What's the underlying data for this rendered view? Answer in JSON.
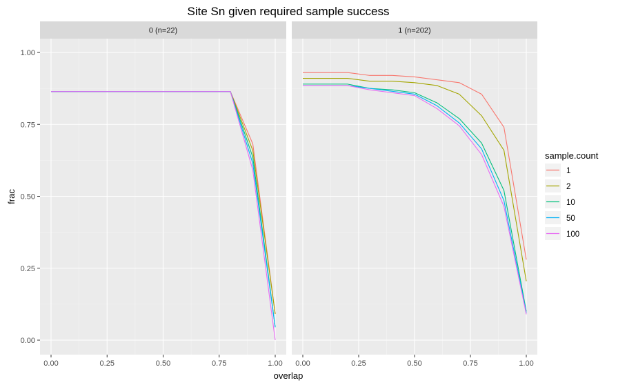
{
  "chart_data": {
    "type": "line",
    "title": "Site Sn given required sample success",
    "xlabel": "overlap",
    "ylabel": "frac",
    "xlim": [
      0,
      1
    ],
    "ylim": [
      0,
      1
    ],
    "x_ticks": [
      "0.00",
      "0.25",
      "0.50",
      "0.75",
      "1.00"
    ],
    "y_ticks": [
      "0.00",
      "0.25",
      "0.50",
      "0.75",
      "1.00"
    ],
    "grid": true,
    "legend": {
      "title": "sample.count",
      "placement": "right",
      "entries": [
        {
          "label": "1",
          "color": "#F8766D"
        },
        {
          "label": "2",
          "color": "#A3A500"
        },
        {
          "label": "10",
          "color": "#00BF7D"
        },
        {
          "label": "50",
          "color": "#00B0F6"
        },
        {
          "label": "100",
          "color": "#E76BF3"
        }
      ]
    },
    "facets": [
      {
        "label": "0 (n=22)",
        "series": [
          {
            "name": "1",
            "color": "#F8766D",
            "x": [
              0.0,
              0.8,
              0.9,
              1.0
            ],
            "y": [
              0.864,
              0.864,
              0.682,
              0.091
            ]
          },
          {
            "name": "2",
            "color": "#A3A500",
            "x": [
              0.0,
              0.8,
              0.9,
              1.0
            ],
            "y": [
              0.864,
              0.864,
              0.659,
              0.091
            ]
          },
          {
            "name": "10",
            "color": "#00BF7D",
            "x": [
              0.0,
              0.8,
              0.9,
              1.0
            ],
            "y": [
              0.864,
              0.864,
              0.636,
              0.045
            ]
          },
          {
            "name": "50",
            "color": "#00B0F6",
            "x": [
              0.0,
              0.8,
              0.9,
              1.0
            ],
            "y": [
              0.864,
              0.864,
              0.614,
              0.045
            ]
          },
          {
            "name": "100",
            "color": "#E76BF3",
            "x": [
              0.0,
              0.8,
              0.9,
              1.0
            ],
            "y": [
              0.864,
              0.864,
              0.591,
              0.0
            ]
          }
        ]
      },
      {
        "label": "1 (n=202)",
        "series": [
          {
            "name": "1",
            "color": "#F8766D",
            "x": [
              0.0,
              0.1,
              0.2,
              0.3,
              0.4,
              0.5,
              0.6,
              0.7,
              0.8,
              0.9,
              1.0
            ],
            "y": [
              0.93,
              0.93,
              0.93,
              0.92,
              0.92,
              0.915,
              0.905,
              0.895,
              0.855,
              0.74,
              0.28
            ]
          },
          {
            "name": "2",
            "color": "#A3A500",
            "x": [
              0.0,
              0.1,
              0.2,
              0.3,
              0.4,
              0.5,
              0.6,
              0.7,
              0.8,
              0.9,
              1.0
            ],
            "y": [
              0.91,
              0.91,
              0.91,
              0.9,
              0.9,
              0.895,
              0.885,
              0.855,
              0.78,
              0.66,
              0.205
            ]
          },
          {
            "name": "10",
            "color": "#00BF7D",
            "x": [
              0.0,
              0.1,
              0.2,
              0.3,
              0.4,
              0.5,
              0.6,
              0.7,
              0.8,
              0.9,
              1.0
            ],
            "y": [
              0.89,
              0.89,
              0.89,
              0.875,
              0.87,
              0.86,
              0.825,
              0.77,
              0.685,
              0.52,
              0.1
            ]
          },
          {
            "name": "50",
            "color": "#00B0F6",
            "x": [
              0.0,
              0.1,
              0.2,
              0.3,
              0.4,
              0.5,
              0.6,
              0.7,
              0.8,
              0.9,
              1.0
            ],
            "y": [
              0.885,
              0.885,
              0.885,
              0.875,
              0.865,
              0.855,
              0.815,
              0.755,
              0.665,
              0.485,
              0.095
            ]
          },
          {
            "name": "100",
            "color": "#E76BF3",
            "x": [
              0.0,
              0.1,
              0.2,
              0.3,
              0.4,
              0.5,
              0.6,
              0.7,
              0.8,
              0.9,
              1.0
            ],
            "y": [
              0.885,
              0.885,
              0.885,
              0.87,
              0.86,
              0.85,
              0.805,
              0.745,
              0.645,
              0.465,
              0.09
            ]
          }
        ]
      }
    ]
  }
}
